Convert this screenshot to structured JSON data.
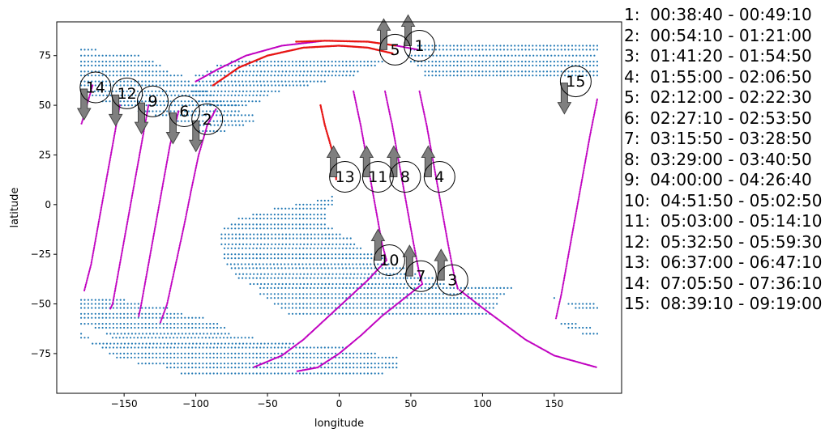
{
  "chart_data": {
    "type": "scatter",
    "xlabel": "longitude",
    "ylabel": "latitude",
    "xlim": [
      -197,
      197
    ],
    "ylim": [
      -95,
      92
    ],
    "xticks": [
      -150,
      -100,
      -50,
      0,
      50,
      100,
      150
    ],
    "yticks": [
      -75,
      -50,
      -25,
      0,
      25,
      50,
      75
    ],
    "xtick_labels": [
      "−150",
      "−100",
      "−50",
      "0",
      "50",
      "100",
      "150"
    ],
    "ytick_labels": [
      "−75",
      "−50",
      "−25",
      "0",
      "25",
      "50",
      "75"
    ],
    "grid": false,
    "colors": {
      "land": "#1f77b4",
      "track": "#c000c0",
      "highlight": "#e8170f",
      "arrow": "#7f7f7f"
    },
    "land_regions": [
      {
        "rows": [
          [
            78,
            -180,
            -168
          ],
          [
            75,
            -180,
            -140
          ],
          [
            72,
            -180,
            -130
          ],
          [
            70,
            -180,
            -125
          ],
          [
            67,
            -180,
            -118
          ],
          [
            65,
            -180,
            -110
          ],
          [
            62,
            -180,
            -104
          ],
          [
            60,
            -180,
            -100
          ],
          [
            57,
            -178,
            -92
          ],
          [
            55,
            -172,
            -88
          ],
          [
            52,
            -165,
            -82
          ],
          [
            50,
            -152,
            -72
          ],
          [
            47,
            -140,
            -70
          ],
          [
            45,
            -128,
            -60
          ],
          [
            42,
            -115,
            -58
          ],
          [
            40,
            -102,
            -65
          ],
          [
            37,
            -100,
            -80
          ]
        ]
      },
      {
        "rows": [
          [
            72,
            -75,
            30
          ],
          [
            70,
            -85,
            25
          ],
          [
            67,
            -92,
            15
          ],
          [
            65,
            -100,
            10
          ],
          [
            62,
            -100,
            -10
          ],
          [
            60,
            -102,
            -20
          ],
          [
            57,
            -102,
            -40
          ],
          [
            55,
            -100,
            -50
          ],
          [
            52,
            -98,
            -55
          ],
          [
            50,
            -90,
            -65
          ]
        ]
      },
      {
        "rows": [
          [
            80,
            55,
            180
          ],
          [
            78,
            50,
            180
          ],
          [
            75,
            48,
            180
          ],
          [
            72,
            50,
            180
          ],
          [
            70,
            55,
            180
          ],
          [
            67,
            60,
            180
          ],
          [
            65,
            60,
            180
          ]
        ]
      },
      {
        "rows": [
          [
            4,
            -5,
            -3
          ],
          [
            2,
            -15,
            -3
          ],
          [
            0,
            -30,
            -5
          ],
          [
            -2,
            -45,
            -8
          ],
          [
            -5,
            -60,
            -8
          ],
          [
            -7,
            -70,
            -10
          ],
          [
            -10,
            -75,
            -10
          ],
          [
            -12,
            -80,
            -5
          ],
          [
            -15,
            -82,
            2
          ],
          [
            -17,
            -82,
            8
          ],
          [
            -20,
            -82,
            12
          ],
          [
            -22,
            -80,
            15
          ],
          [
            -25,
            -80,
            25
          ],
          [
            -27,
            -80,
            30
          ],
          [
            -30,
            -78,
            40
          ],
          [
            -32,
            -75,
            45
          ],
          [
            -35,
            -72,
            55
          ],
          [
            -37,
            -70,
            65
          ],
          [
            -40,
            -62,
            75
          ],
          [
            -42,
            -55,
            120
          ],
          [
            -45,
            -55,
            115
          ],
          [
            -47,
            -50,
            112
          ],
          [
            -50,
            -45,
            110
          ],
          [
            -52,
            -40,
            108
          ],
          [
            -55,
            -35,
            105
          ]
        ]
      },
      {
        "rows": [
          [
            -48,
            -180,
            -150
          ],
          [
            -50,
            -180,
            -140
          ],
          [
            -52,
            -180,
            -120
          ],
          [
            -55,
            -180,
            -110
          ],
          [
            -57,
            -180,
            -95
          ],
          [
            -60,
            -180,
            -85
          ],
          [
            -62,
            -170,
            -80
          ],
          [
            -65,
            -162,
            -75
          ],
          [
            -67,
            -158,
            -60
          ]
        ]
      },
      {
        "rows": [
          [
            -65,
            -180,
            -178
          ],
          [
            -67,
            -180,
            -175
          ],
          [
            -70,
            -172,
            -30
          ],
          [
            -72,
            -165,
            5
          ],
          [
            -75,
            -160,
            25
          ],
          [
            -77,
            -155,
            40
          ],
          [
            -80,
            -140,
            40
          ],
          [
            -82,
            -120,
            40
          ],
          [
            -85,
            -110,
            30
          ]
        ]
      },
      {
        "rows": [
          [
            -47,
            150,
            152
          ],
          [
            -50,
            160,
            178
          ],
          [
            -52,
            165,
            180
          ],
          [
            -60,
            155,
            165
          ],
          [
            -62,
            160,
            175
          ],
          [
            -65,
            170,
            180
          ]
        ]
      }
    ],
    "passes": [
      {
        "label": "1",
        "time": "00:38:40 - 00:49:10",
        "arrow": "up",
        "label_pos": [
          56,
          80
        ],
        "track": [
          [
            -100,
            62
          ],
          [
            -85,
            68
          ],
          [
            -65,
            75
          ],
          [
            -40,
            80
          ],
          [
            -10,
            82.5
          ],
          [
            20,
            82
          ],
          [
            40,
            80
          ],
          [
            55,
            78
          ]
        ],
        "red": [
          [
            -30,
            82
          ],
          [
            -10,
            82.5
          ],
          [
            20,
            82
          ],
          [
            40,
            80
          ]
        ]
      },
      {
        "label": "2",
        "time": "00:54:10 - 01:21:00",
        "arrow": "down",
        "label_pos": [
          -92,
          43
        ],
        "track": [
          [
            -86,
            48
          ],
          [
            -92,
            40
          ],
          [
            -98,
            25
          ],
          [
            -103,
            8
          ],
          [
            -108,
            -10
          ],
          [
            -114,
            -30
          ],
          [
            -120,
            -50
          ],
          [
            -125,
            -60
          ]
        ],
        "red": []
      },
      {
        "label": "3",
        "time": "01:41:20 - 01:54:50",
        "arrow": "up",
        "label_pos": [
          79,
          -38
        ],
        "track": [
          [
            56,
            57
          ],
          [
            61,
            40
          ],
          [
            66,
            20
          ],
          [
            71,
            0
          ],
          [
            76,
            -20
          ],
          [
            80,
            -35
          ],
          [
            83,
            -43
          ]
        ],
        "red": []
      },
      {
        "label": "4",
        "time": "01:55:00 - 02:06:50",
        "arrow": "up",
        "label_pos": [
          70,
          14
        ],
        "track": [
          [
            84,
            -43
          ],
          [
            100,
            -52
          ],
          [
            115,
            -60
          ],
          [
            130,
            -68
          ],
          [
            150,
            -76
          ],
          [
            170,
            -80
          ],
          [
            180,
            -82
          ]
        ],
        "red": []
      },
      {
        "label": "5",
        "time": "02:12:00 - 02:22:30",
        "arrow": "up",
        "label_pos": [
          39,
          78
        ],
        "track": [
          [
            -88,
            60
          ],
          [
            -70,
            69
          ],
          [
            -50,
            75
          ],
          [
            -25,
            79
          ],
          [
            0,
            80
          ],
          [
            20,
            79
          ],
          [
            38,
            76
          ]
        ],
        "red": [
          [
            -88,
            60
          ],
          [
            -70,
            69
          ],
          [
            -50,
            75
          ],
          [
            -25,
            79
          ],
          [
            0,
            80
          ],
          [
            20,
            79
          ],
          [
            38,
            76
          ]
        ]
      },
      {
        "label": "6",
        "time": "02:27:10 - 02:53:50",
        "arrow": "down",
        "label_pos": [
          -108,
          47
        ],
        "track": [
          [
            -112,
            47
          ],
          [
            -118,
            30
          ],
          [
            -123,
            10
          ],
          [
            -128,
            -10
          ],
          [
            -133,
            -30
          ],
          [
            -138,
            -50
          ],
          [
            -140,
            -57
          ]
        ],
        "red": []
      },
      {
        "label": "7",
        "time": "03:15:50 - 03:28:50",
        "arrow": "up",
        "label_pos": [
          57,
          -36
        ],
        "track": [
          [
            32,
            57
          ],
          [
            37,
            40
          ],
          [
            42,
            20
          ],
          [
            47,
            0
          ],
          [
            52,
            -20
          ],
          [
            56,
            -35
          ],
          [
            58,
            -40
          ]
        ],
        "red": []
      },
      {
        "label": "8",
        "time": "03:29:00 - 03:40:50",
        "arrow": "up",
        "label_pos": [
          46,
          14
        ],
        "track": [
          [
            58,
            -40
          ],
          [
            44,
            -48
          ],
          [
            30,
            -56
          ],
          [
            15,
            -66
          ],
          [
            0,
            -75
          ],
          [
            -15,
            -82
          ],
          [
            -30,
            -84
          ]
        ],
        "red": []
      },
      {
        "label": "9",
        "time": "04:00:00 - 04:26:40",
        "arrow": "down",
        "label_pos": [
          -130,
          52
        ],
        "track": [
          [
            -133,
            50
          ],
          [
            -138,
            30
          ],
          [
            -143,
            10
          ],
          [
            -148,
            -10
          ],
          [
            -153,
            -30
          ],
          [
            -158,
            -50
          ],
          [
            -160,
            -53
          ]
        ],
        "red": []
      },
      {
        "label": "10",
        "time": "04:51:50 - 05:02:50",
        "arrow": "up",
        "label_pos": [
          35,
          -28
        ],
        "track": [
          [
            10,
            57
          ],
          [
            15,
            40
          ],
          [
            20,
            20
          ],
          [
            25,
            0
          ],
          [
            30,
            -20
          ],
          [
            33,
            -28
          ]
        ],
        "red": []
      },
      {
        "label": "11",
        "time": "05:03:00 - 05:14:10",
        "arrow": "up",
        "label_pos": [
          27,
          14
        ],
        "track": [
          [
            33,
            -28
          ],
          [
            20,
            -38
          ],
          [
            5,
            -48
          ],
          [
            -10,
            -58
          ],
          [
            -25,
            -68
          ],
          [
            -40,
            -76
          ],
          [
            -60,
            -82
          ]
        ],
        "red": []
      },
      {
        "label": "12",
        "time": "05:32:50 - 05:59:30",
        "arrow": "down",
        "label_pos": [
          -148,
          56
        ],
        "track": [
          [
            -153,
            50
          ],
          [
            -158,
            30
          ],
          [
            -163,
            10
          ],
          [
            -168,
            -10
          ],
          [
            -173,
            -30
          ],
          [
            -178,
            -44
          ]
        ],
        "red": []
      },
      {
        "label": "13",
        "time": "06:37:00 - 06:47:10",
        "arrow": "up",
        "label_pos": [
          4,
          14
        ],
        "track": [
          [
            -13,
            50
          ],
          [
            -10,
            40
          ],
          [
            -6,
            30
          ],
          [
            -3,
            22
          ],
          [
            -2,
            12
          ]
        ],
        "red": [
          [
            -13,
            50
          ],
          [
            -10,
            40
          ],
          [
            -6,
            30
          ],
          [
            -3,
            22
          ],
          [
            -2,
            12
          ]
        ]
      },
      {
        "label": "14",
        "time": "07:05:50 - 07:36:10",
        "arrow": "down",
        "label_pos": [
          -170,
          59
        ],
        "track": [
          [
            -172,
            60
          ],
          [
            -176,
            50
          ],
          [
            -180,
            40
          ]
        ],
        "red": []
      },
      {
        "label": "15",
        "time": "08:39:10 - 09:19:00",
        "arrow": "down",
        "label_pos": [
          165,
          62
        ],
        "track": [
          [
            180,
            53
          ],
          [
            175,
            35
          ],
          [
            170,
            15
          ],
          [
            165,
            -5
          ],
          [
            160,
            -25
          ],
          [
            155,
            -45
          ],
          [
            151,
            -58
          ]
        ],
        "red": []
      }
    ]
  }
}
